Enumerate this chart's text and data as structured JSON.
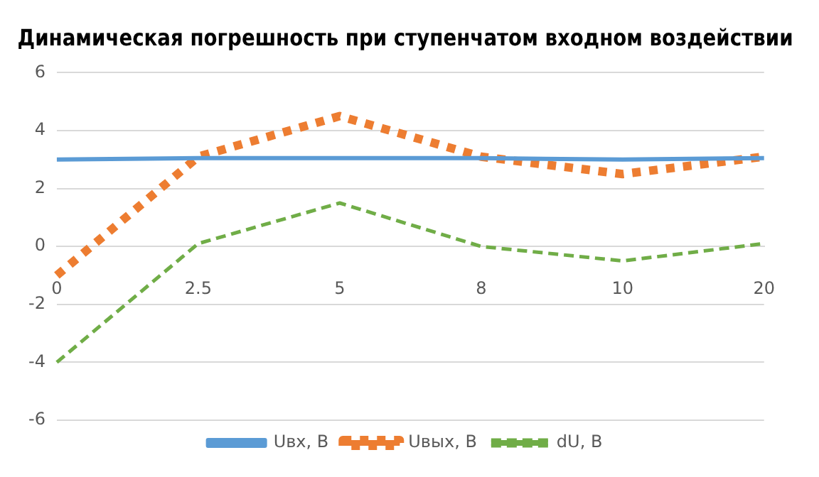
{
  "chart_data": {
    "type": "line",
    "title": "Динамическая погрешность при ступенчатом входном воздействии",
    "categories": [
      "0",
      "2.5",
      "5",
      "8",
      "10",
      "20"
    ],
    "series": [
      {
        "name": "Uвх, В",
        "color": "#5b9bd5",
        "line_style": "solid",
        "values": [
          3,
          3.05,
          3.05,
          3.05,
          3,
          3.05
        ]
      },
      {
        "name": "Uвых, В",
        "color": "#ed7d31",
        "line_style": "dotted",
        "values": [
          -1,
          3.1,
          4.5,
          3.1,
          2.5,
          3.1
        ]
      },
      {
        "name": "dU, В",
        "color": "#70ad47",
        "line_style": "dashed",
        "values": [
          -4,
          0.1,
          1.5,
          0,
          -0.5,
          0.1
        ]
      }
    ],
    "ylim": [
      -6,
      6
    ],
    "yticks": [
      -6,
      -4,
      -2,
      0,
      2,
      4,
      6
    ],
    "grid": "y",
    "legend": "bottom",
    "marker": "none"
  }
}
